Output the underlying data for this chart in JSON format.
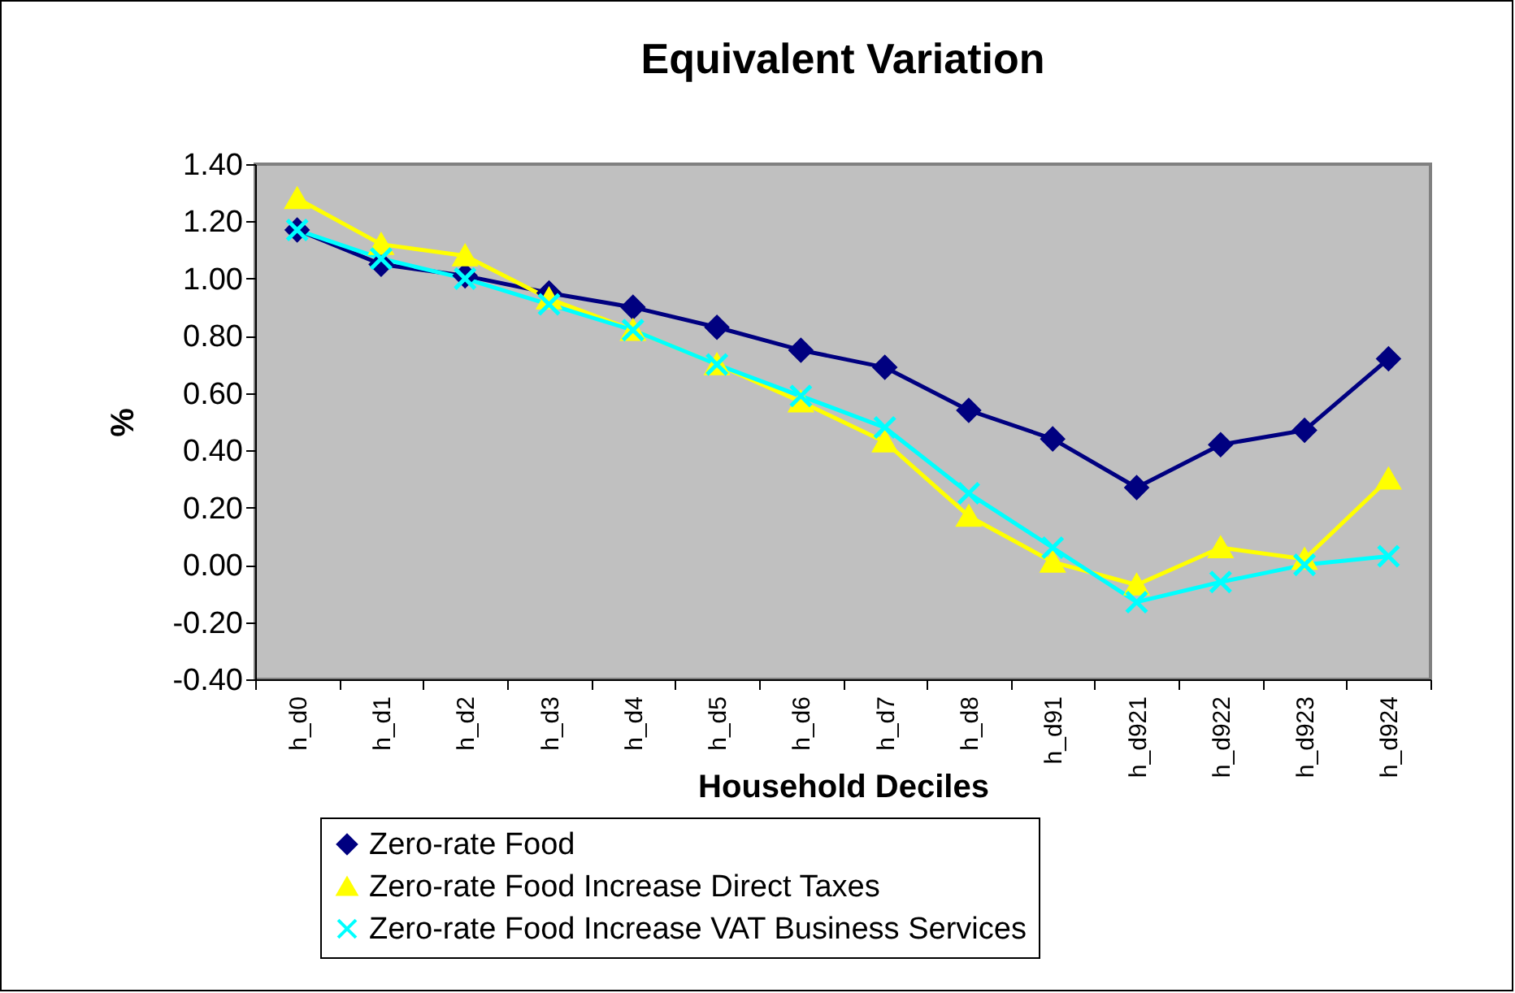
{
  "chart_data": {
    "type": "line",
    "title": "Equivalent Variation",
    "xlabel": "Household Deciles",
    "ylabel": "%",
    "categories": [
      "h_d0",
      "h_d1",
      "h_d2",
      "h_d3",
      "h_d4",
      "h_d5",
      "h_d6",
      "h_d7",
      "h_d8",
      "h_d91",
      "h_d921",
      "h_d922",
      "h_d923",
      "h_d924"
    ],
    "series": [
      {
        "name": "Zero-rate Food",
        "color": "#000080",
        "marker": "diamond",
        "values": [
          1.17,
          1.05,
          1.01,
          0.95,
          0.9,
          0.83,
          0.75,
          0.69,
          0.54,
          0.44,
          0.27,
          0.42,
          0.47,
          0.72
        ]
      },
      {
        "name": "Zero-rate Food Increase Direct Taxes",
        "color": "#ffff00",
        "marker": "triangle",
        "values": [
          1.28,
          1.12,
          1.08,
          0.93,
          0.82,
          0.7,
          0.57,
          0.43,
          0.17,
          0.01,
          -0.07,
          0.06,
          0.02,
          0.3
        ]
      },
      {
        "name": "Zero-rate Food Increase VAT Business Services",
        "color": "#00ffff",
        "marker": "cross",
        "values": [
          1.17,
          1.07,
          1.0,
          0.91,
          0.82,
          0.7,
          0.59,
          0.48,
          0.25,
          0.06,
          -0.13,
          -0.06,
          0.0,
          0.03
        ]
      }
    ],
    "ylim": [
      -0.4,
      1.4
    ],
    "yticks": [
      {
        "value": -0.4,
        "label": "-0.40"
      },
      {
        "value": -0.2,
        "label": "-0.20"
      },
      {
        "value": 0,
        "label": "0.00"
      },
      {
        "value": 0.2,
        "label": "0.20"
      },
      {
        "value": 0.4,
        "label": "0.40"
      },
      {
        "value": 0.6,
        "label": "0.60"
      },
      {
        "value": 0.8,
        "label": "0.80"
      },
      {
        "value": 1.0,
        "label": "1.00"
      },
      {
        "value": 1.2,
        "label": "1.20"
      },
      {
        "value": 1.4,
        "label": "1.40"
      }
    ],
    "grid": false,
    "legend": "bottom"
  }
}
